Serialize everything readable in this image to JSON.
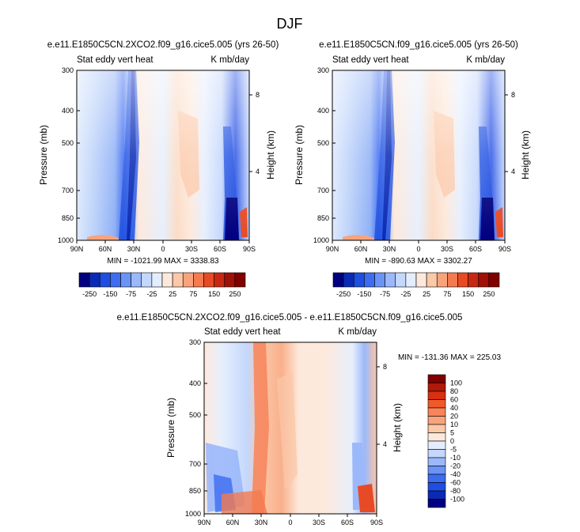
{
  "figure": {
    "title": "DJF"
  },
  "panels": [
    {
      "id": "top-left",
      "case": "e.e11.E1850C5CN.2XCO2.f09_g16.cice5.005 (yrs 26-50)",
      "variable": "Stat eddy vert heat",
      "units": "K mb/day",
      "stats": "MIN = -1021.99  MAX = 3338.83",
      "colorbar": {
        "labels": [
          "-250",
          "-150",
          "-75",
          "-25",
          "25",
          "75",
          "150",
          "250"
        ],
        "colors": [
          "#000080",
          "#0a2ab5",
          "#1e4fe0",
          "#3d6cf0",
          "#6b93f6",
          "#9bb8fa",
          "#c4d7fc",
          "#e3edfe",
          "#fde9dc",
          "#fbc8a8",
          "#f9a37c",
          "#f47a50",
          "#e84a26",
          "#c82812",
          "#a01006",
          "#800000"
        ]
      }
    },
    {
      "id": "top-right",
      "case": "e.e11.E1850C5CN.f09_g16.cice5.005 (yrs 26-50)",
      "variable": "Stat eddy vert heat",
      "units": "K mb/day",
      "stats": "MIN = -890.63  MAX = 3302.27",
      "colorbar": {
        "labels": [
          "-250",
          "-150",
          "-75",
          "-25",
          "25",
          "75",
          "150",
          "250"
        ],
        "colors": [
          "#000080",
          "#0a2ab5",
          "#1e4fe0",
          "#3d6cf0",
          "#6b93f6",
          "#9bb8fa",
          "#c4d7fc",
          "#e3edfe",
          "#fde9dc",
          "#fbc8a8",
          "#f9a37c",
          "#f47a50",
          "#e84a26",
          "#c82812",
          "#a01006",
          "#800000"
        ]
      }
    },
    {
      "id": "bottom",
      "case": "e.e11.E1850C5CN.2XCO2.f09_g16.cice5.005 - e.e11.E1850C5CN.f09_g16.cice5.005",
      "variable": "Stat eddy vert heat",
      "units": "K mb/day",
      "stats": "MIN = -131.36  MAX = 225.03",
      "colorbar": {
        "labels": [
          "100",
          "80",
          "60",
          "40",
          "20",
          "10",
          "5",
          "0",
          "-5",
          "-10",
          "-20",
          "-40",
          "-60",
          "-80",
          "-100"
        ],
        "colors": [
          "#800000",
          "#b01a08",
          "#d83010",
          "#f05a28",
          "#f7845a",
          "#f9a37c",
          "#fbc8a8",
          "#fde9dc",
          "#e3edfe",
          "#c4d7fc",
          "#9bb8fa",
          "#6b93f6",
          "#3d6cf0",
          "#1e4fe0",
          "#0a2ab5",
          "#000080"
        ]
      }
    }
  ],
  "chart_data": [
    {
      "type": "heatmap",
      "title": "e.e11.E1850C5CN.2XCO2.f09_g16.cice5.005 (yrs 26-50)",
      "xlabel": "",
      "ylabel": "Pressure (mb)",
      "y2label": "Height (km)",
      "x_ticks": [
        "90N",
        "60N",
        "30N",
        "0",
        "30S",
        "60S",
        "90S"
      ],
      "y_ticks": [
        "300",
        "400",
        "500",
        "700",
        "850",
        "1000"
      ],
      "y2_ticks": [
        "8",
        "4"
      ],
      "ylim": [
        1000,
        300
      ],
      "min": -1021.99,
      "max": 3338.83
    },
    {
      "type": "heatmap",
      "title": "e.e11.E1850C5CN.f09_g16.cice5.005 (yrs 26-50)",
      "xlabel": "",
      "ylabel": "Pressure (mb)",
      "y2label": "Height (km)",
      "x_ticks": [
        "90N",
        "60N",
        "30N",
        "0",
        "30S",
        "60S",
        "90S"
      ],
      "y_ticks": [
        "300",
        "400",
        "500",
        "700",
        "850",
        "1000"
      ],
      "y2_ticks": [
        "8",
        "4"
      ],
      "ylim": [
        1000,
        300
      ],
      "min": -890.63,
      "max": 3302.27
    },
    {
      "type": "heatmap",
      "title": "e.e11.E1850C5CN.2XCO2.f09_g16.cice5.005 - e.e11.E1850C5CN.f09_g16.cice5.005",
      "xlabel": "",
      "ylabel": "Pressure (mb)",
      "y2label": "Height (km)",
      "x_ticks": [
        "90N",
        "60N",
        "30N",
        "0",
        "30S",
        "60S",
        "90S"
      ],
      "y_ticks": [
        "300",
        "400",
        "500",
        "700",
        "850",
        "1000"
      ],
      "y2_ticks": [
        "8",
        "4"
      ],
      "ylim": [
        1000,
        300
      ],
      "min": -131.36,
      "max": 225.03
    }
  ]
}
